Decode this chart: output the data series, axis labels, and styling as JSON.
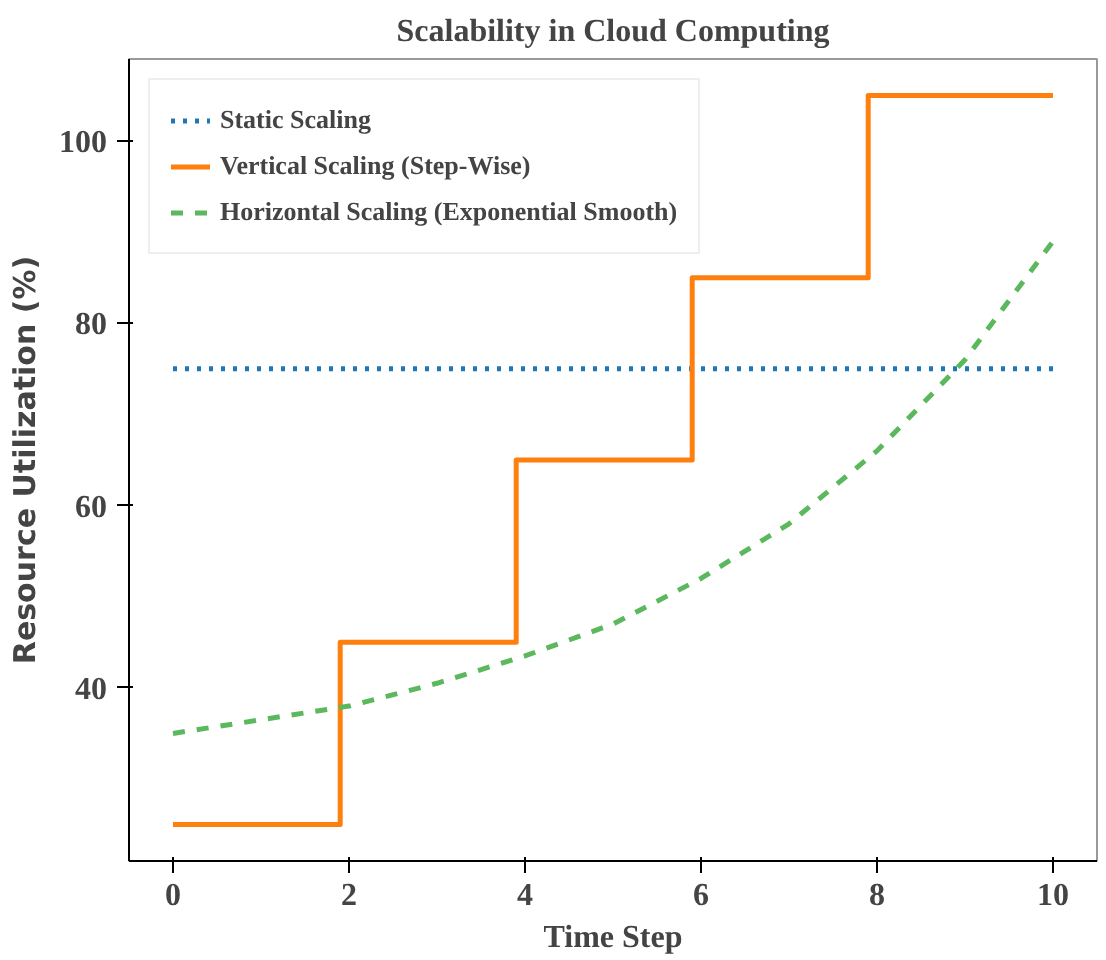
{
  "chart_data": {
    "type": "line",
    "title": "Scalability in Cloud Computing",
    "xlabel": "Time Step",
    "ylabel": "Resource Utilization (%)",
    "xlim": [
      -0.5,
      10.5
    ],
    "ylim": [
      21,
      109
    ],
    "xticks": [
      0,
      2,
      4,
      6,
      8,
      10
    ],
    "yticks": [
      40,
      60,
      80,
      100
    ],
    "grid": false,
    "legend": "top left",
    "series": [
      {
        "name": "Static Scaling",
        "line_style": "dotted",
        "color": "#1f77b4",
        "x": [
          0,
          10
        ],
        "values": [
          75,
          75
        ]
      },
      {
        "name": "Vertical Scaling (Step-Wise)",
        "type": "step",
        "line_style": "solid",
        "color": "#ff7f0e",
        "x": [
          0,
          1.9,
          3.9,
          5.9,
          7.9,
          10
        ],
        "values": [
          25,
          45,
          65,
          85,
          105,
          105
        ]
      },
      {
        "name": "Horizontal Scaling (Exponential Smooth)",
        "line_style": "dashed",
        "color": "#5cb85c",
        "x": [
          0,
          1,
          2,
          3,
          4,
          5,
          6,
          7,
          8,
          9,
          10
        ],
        "values": [
          35,
          36.5,
          38,
          40.5,
          43.5,
          47,
          52,
          58,
          66,
          76,
          89
        ]
      }
    ]
  }
}
